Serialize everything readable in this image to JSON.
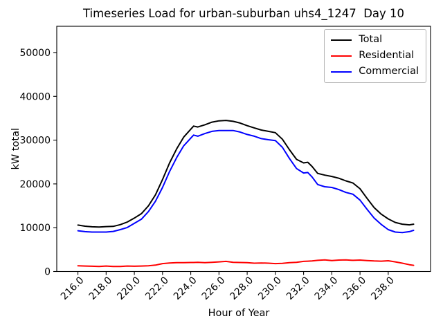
{
  "chart_data": {
    "type": "line",
    "title": "Timeseries Load for urban-suburban uhs4_1247  Day 10",
    "xlabel": "Hour of Year",
    "ylabel": "kW total",
    "xlim": [
      214.5,
      241.0
    ],
    "ylim": [
      0,
      56000
    ],
    "grid": false,
    "legend_position": "upper right",
    "xticks": {
      "values": [
        216,
        218,
        220,
        222,
        224,
        226,
        228,
        230,
        232,
        234,
        236,
        238
      ],
      "labels": [
        "216.0",
        "218.0",
        "220.0",
        "222.0",
        "224.0",
        "226.0",
        "228.0",
        "230.0",
        "232.0",
        "234.0",
        "236.0",
        "238.0"
      ]
    },
    "yticks": {
      "values": [
        0,
        10000,
        20000,
        30000,
        40000,
        50000
      ],
      "labels": [
        "0",
        "10000",
        "20000",
        "30000",
        "40000",
        "50000"
      ]
    },
    "x": [
      216.0,
      216.5,
      217.0,
      217.5,
      218.0,
      218.5,
      219.0,
      219.5,
      220.0,
      220.5,
      221.0,
      221.5,
      222.0,
      222.5,
      223.0,
      223.5,
      224.0,
      224.2,
      224.5,
      225.0,
      225.5,
      226.0,
      226.5,
      227.0,
      227.5,
      228.0,
      228.5,
      229.0,
      229.5,
      230.0,
      230.5,
      231.0,
      231.5,
      232.0,
      232.3,
      232.6,
      233.0,
      233.5,
      234.0,
      234.5,
      235.0,
      235.5,
      236.0,
      236.5,
      237.0,
      237.5,
      238.0,
      238.5,
      239.0,
      239.5,
      239.8
    ],
    "series": [
      {
        "name": "Total",
        "color": "#000000",
        "values": [
          10600,
          10350,
          10200,
          10150,
          10250,
          10300,
          10700,
          11300,
          12200,
          13200,
          15000,
          17500,
          21000,
          24800,
          28000,
          30700,
          32500,
          33200,
          33000,
          33500,
          34100,
          34400,
          34500,
          34300,
          33900,
          33300,
          32800,
          32300,
          32000,
          31700,
          30200,
          27800,
          25600,
          24800,
          24950,
          24000,
          22400,
          22000,
          21700,
          21300,
          20700,
          20200,
          18900,
          16700,
          14600,
          13100,
          12000,
          11200,
          10800,
          10650,
          10800
        ]
      },
      {
        "name": "Residential",
        "color": "#ff0000",
        "values": [
          1300,
          1250,
          1200,
          1150,
          1250,
          1150,
          1150,
          1250,
          1200,
          1250,
          1300,
          1450,
          1800,
          1950,
          2000,
          2000,
          2050,
          2050,
          2100,
          2000,
          2100,
          2200,
          2300,
          2100,
          2050,
          2000,
          1900,
          1950,
          1900,
          1800,
          1850,
          2000,
          2100,
          2300,
          2350,
          2400,
          2550,
          2650,
          2500,
          2600,
          2650,
          2550,
          2600,
          2500,
          2400,
          2350,
          2450,
          2200,
          1900,
          1550,
          1400
        ]
      },
      {
        "name": "Commercial",
        "color": "#0000ff",
        "values": [
          9300,
          9100,
          9000,
          9000,
          9000,
          9150,
          9550,
          10050,
          11000,
          11950,
          13700,
          16050,
          19200,
          22850,
          26000,
          28700,
          30450,
          31150,
          30900,
          31500,
          32000,
          32200,
          32200,
          32200,
          31850,
          31300,
          30900,
          30350,
          30100,
          29900,
          28350,
          25800,
          23500,
          22500,
          22600,
          21600,
          19850,
          19350,
          19200,
          18700,
          18050,
          17650,
          16300,
          14200,
          12200,
          10750,
          9550,
          9000,
          8900,
          9100,
          9400
        ]
      }
    ]
  }
}
